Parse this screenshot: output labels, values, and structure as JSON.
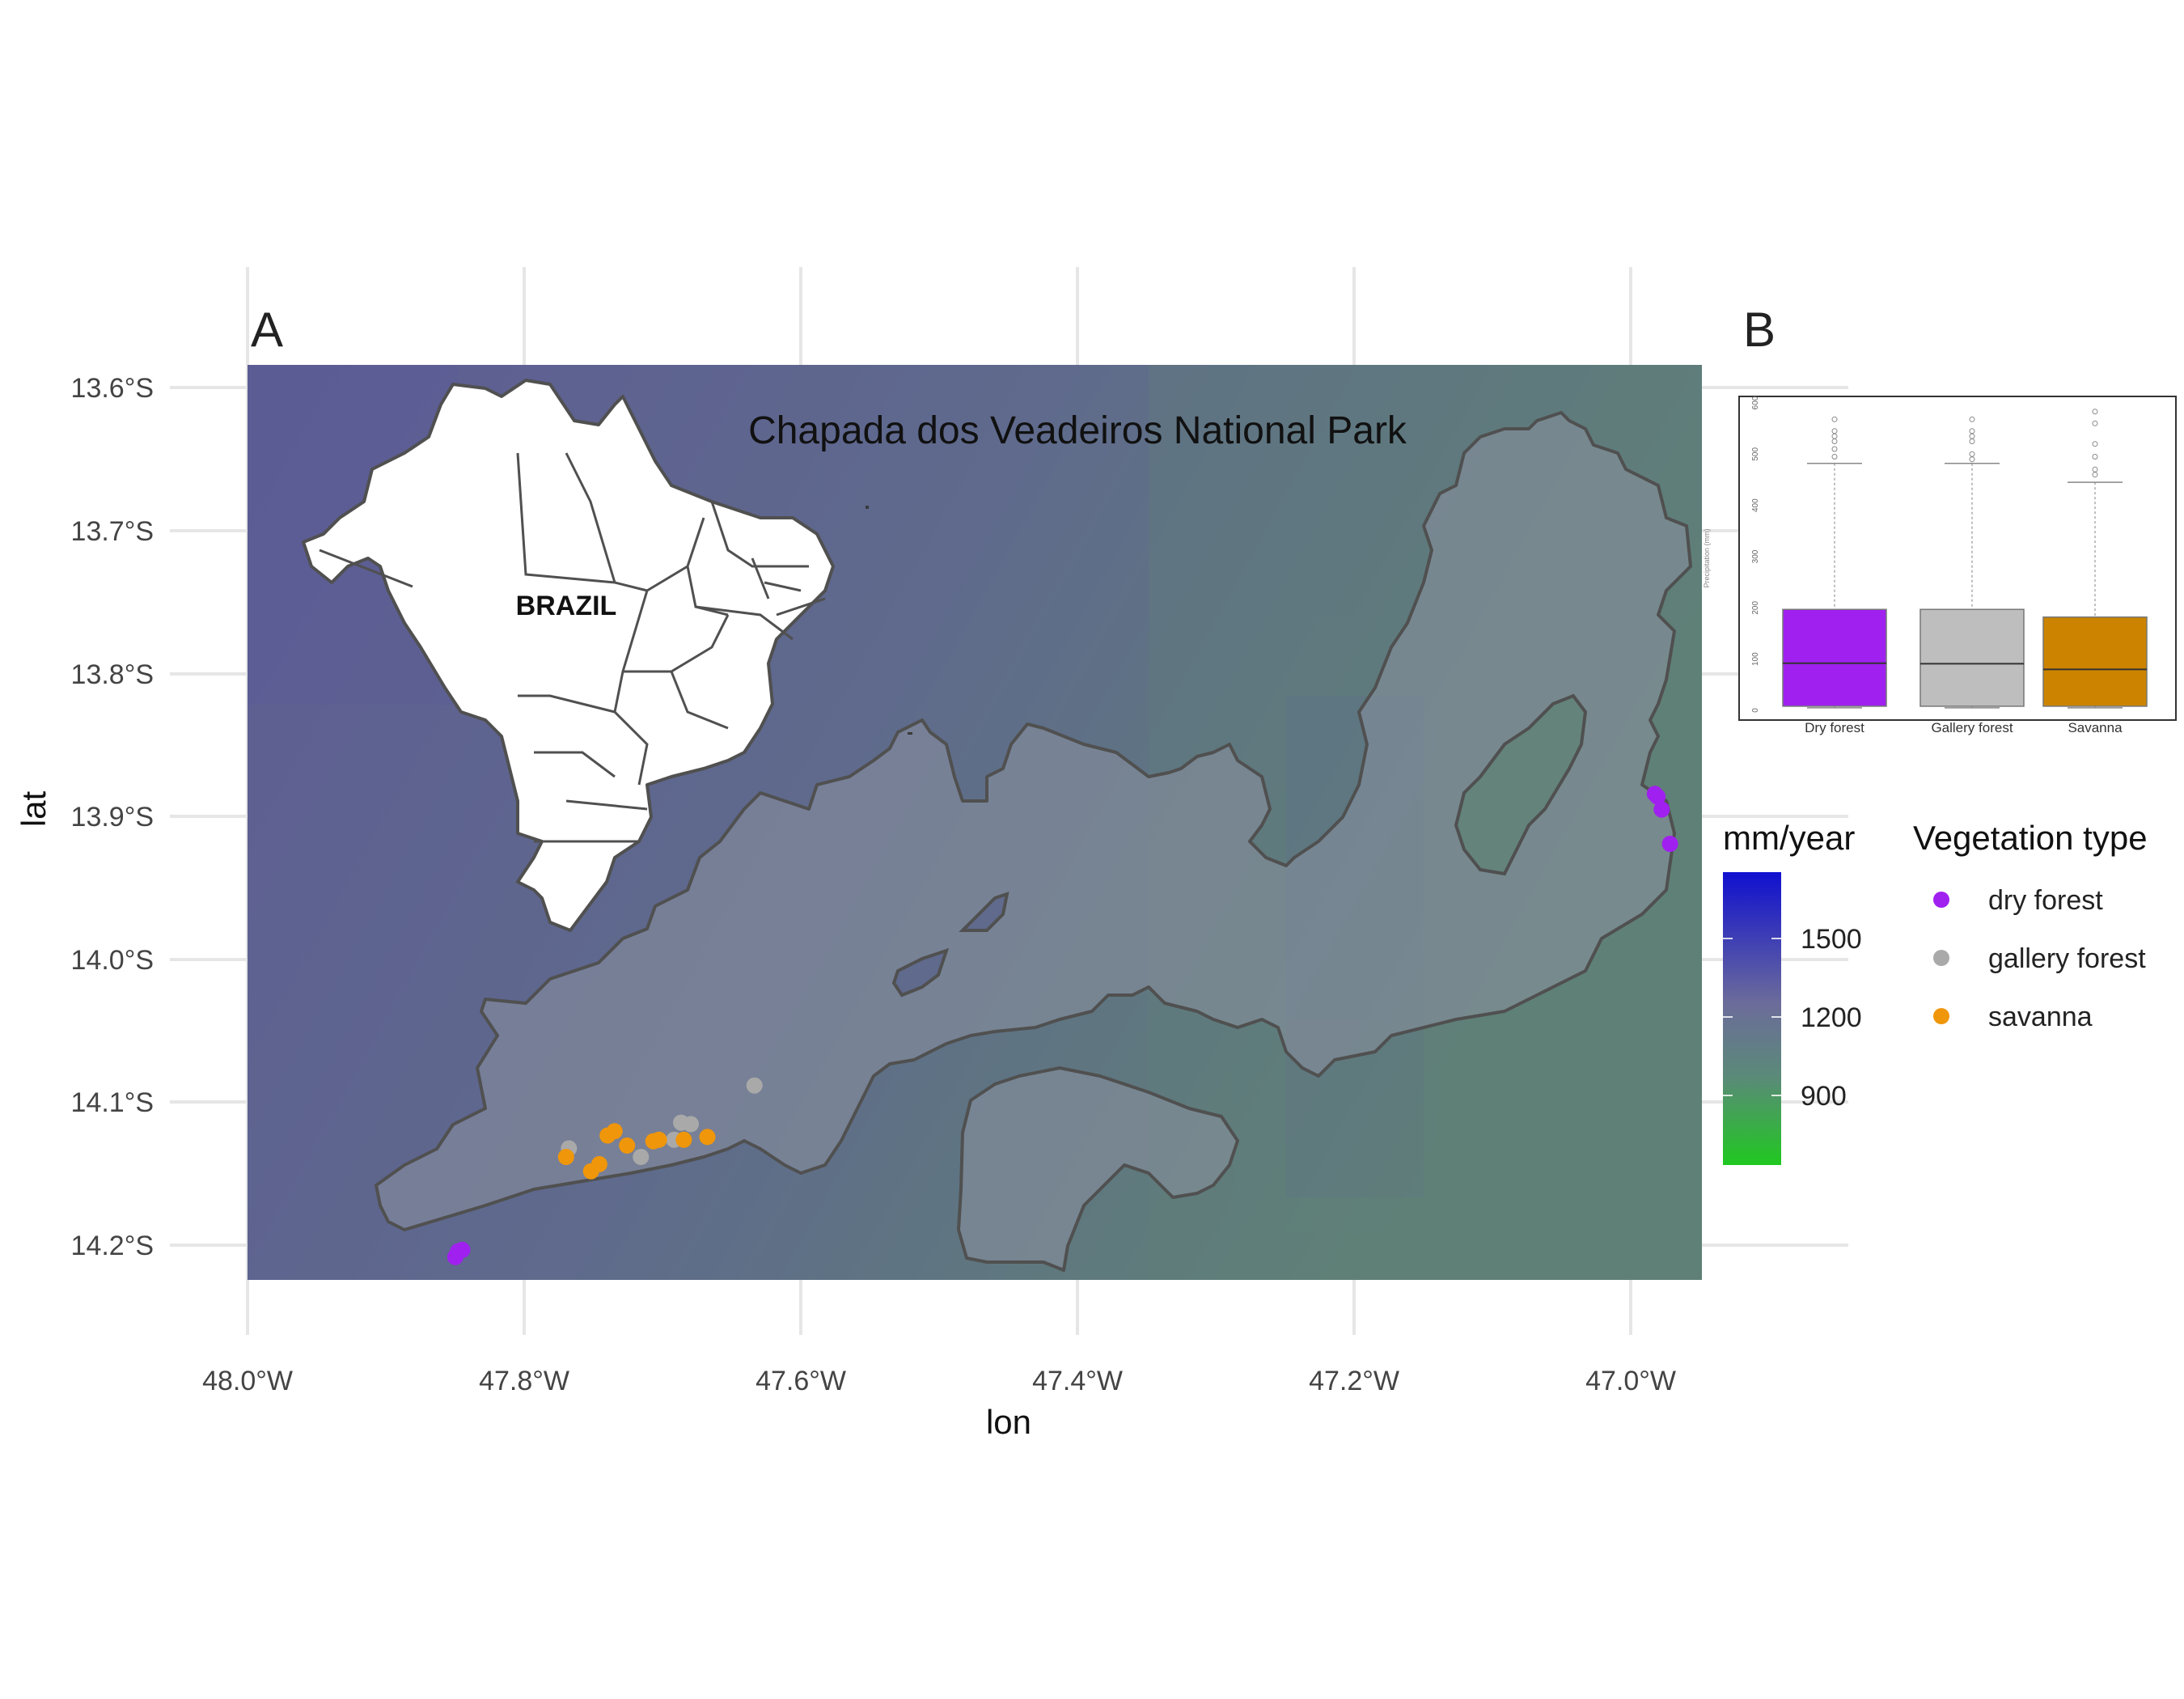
{
  "figure": {
    "panel_a_label": "A",
    "panel_b_label": "B",
    "map_title": "Chapada dos Veadeiros National Park",
    "country_label": "BRAZIL",
    "x_axis_label": "lon",
    "y_axis_label": "lat",
    "x_ticks": [
      "48.0°W",
      "47.8°W",
      "47.6°W",
      "47.4°W",
      "47.2°W",
      "47.0°W"
    ],
    "y_ticks": [
      "13.6°S",
      "13.7°S",
      "13.8°S",
      "13.9°S",
      "14.0°S",
      "14.1°S",
      "14.2°S"
    ],
    "colorbar": {
      "title": "mm/year",
      "ticks": [
        "1500",
        "1200",
        "900"
      ],
      "colors": {
        "high": "#1010d0",
        "mid": "#6c6c9a",
        "low": "#20c820"
      }
    },
    "legend": {
      "title": "Vegetation type",
      "items": [
        {
          "label": "dry forest",
          "color": "#a020f0"
        },
        {
          "label": "gallery forest",
          "color": "#a9a9a9"
        },
        {
          "label": "savanna",
          "color": "#f0960a"
        }
      ]
    }
  },
  "chart_data": [
    {
      "type": "scatter",
      "title": "Chapada dos Veadeiros National Park",
      "xlabel": "lon",
      "ylabel": "lat",
      "xlim": [
        -48.0,
        -46.95
      ],
      "ylim": [
        -14.225,
        -13.585
      ],
      "series": [
        {
          "name": "dry forest",
          "color": "#a020f0",
          "points": [
            [
              -47.85,
              -14.209
            ],
            [
              -47.848,
              -14.205
            ],
            [
              -47.845,
              -14.204
            ],
            [
              -46.984,
              -13.885
            ],
            [
              -46.982,
              -13.887
            ],
            [
              -46.979,
              -13.896
            ],
            [
              -46.973,
              -13.92
            ]
          ]
        },
        {
          "name": "gallery forest",
          "color": "#a9a9a9",
          "points": [
            [
              -47.768,
              -14.133
            ],
            [
              -47.716,
              -14.139
            ],
            [
              -47.692,
              -14.127
            ],
            [
              -47.687,
              -14.115
            ],
            [
              -47.68,
              -14.116
            ],
            [
              -47.634,
              -14.089
            ]
          ]
        },
        {
          "name": "savanna",
          "color": "#f0960a",
          "points": [
            [
              -47.77,
              -14.139
            ],
            [
              -47.752,
              -14.149
            ],
            [
              -47.746,
              -14.144
            ],
            [
              -47.74,
              -14.124
            ],
            [
              -47.735,
              -14.121
            ],
            [
              -47.726,
              -14.131
            ],
            [
              -47.707,
              -14.128
            ],
            [
              -47.703,
              -14.127
            ],
            [
              -47.685,
              -14.127
            ],
            [
              -47.668,
              -14.125
            ]
          ]
        }
      ],
      "colorbar": {
        "title": "mm/year",
        "ticks": [
          900,
          1200,
          1500
        ]
      }
    },
    {
      "type": "box",
      "ylabel": "Precipitation (mm)",
      "ylim": [
        0,
        600
      ],
      "yticks": [
        0,
        100,
        200,
        300,
        400,
        500,
        600
      ],
      "categories": [
        "Dry forest",
        "Gallery forest",
        "Savanna"
      ],
      "colors": [
        "#a020f0",
        "#bebebe",
        "#cc8400"
      ],
      "boxes": [
        {
          "min": 5,
          "q1": 8,
          "median": 92,
          "q3": 197,
          "max": 482,
          "outliers": [
            495,
            510,
            525,
            535,
            545,
            568
          ]
        },
        {
          "min": 5,
          "q1": 8,
          "median": 91,
          "q3": 197,
          "max": 482,
          "outliers": [
            490,
            500,
            525,
            535,
            545,
            568
          ]
        },
        {
          "min": 5,
          "q1": 8,
          "median": 80,
          "q3": 182,
          "max": 445,
          "outliers": [
            460,
            470,
            495,
            520,
            560,
            583
          ]
        }
      ]
    }
  ]
}
